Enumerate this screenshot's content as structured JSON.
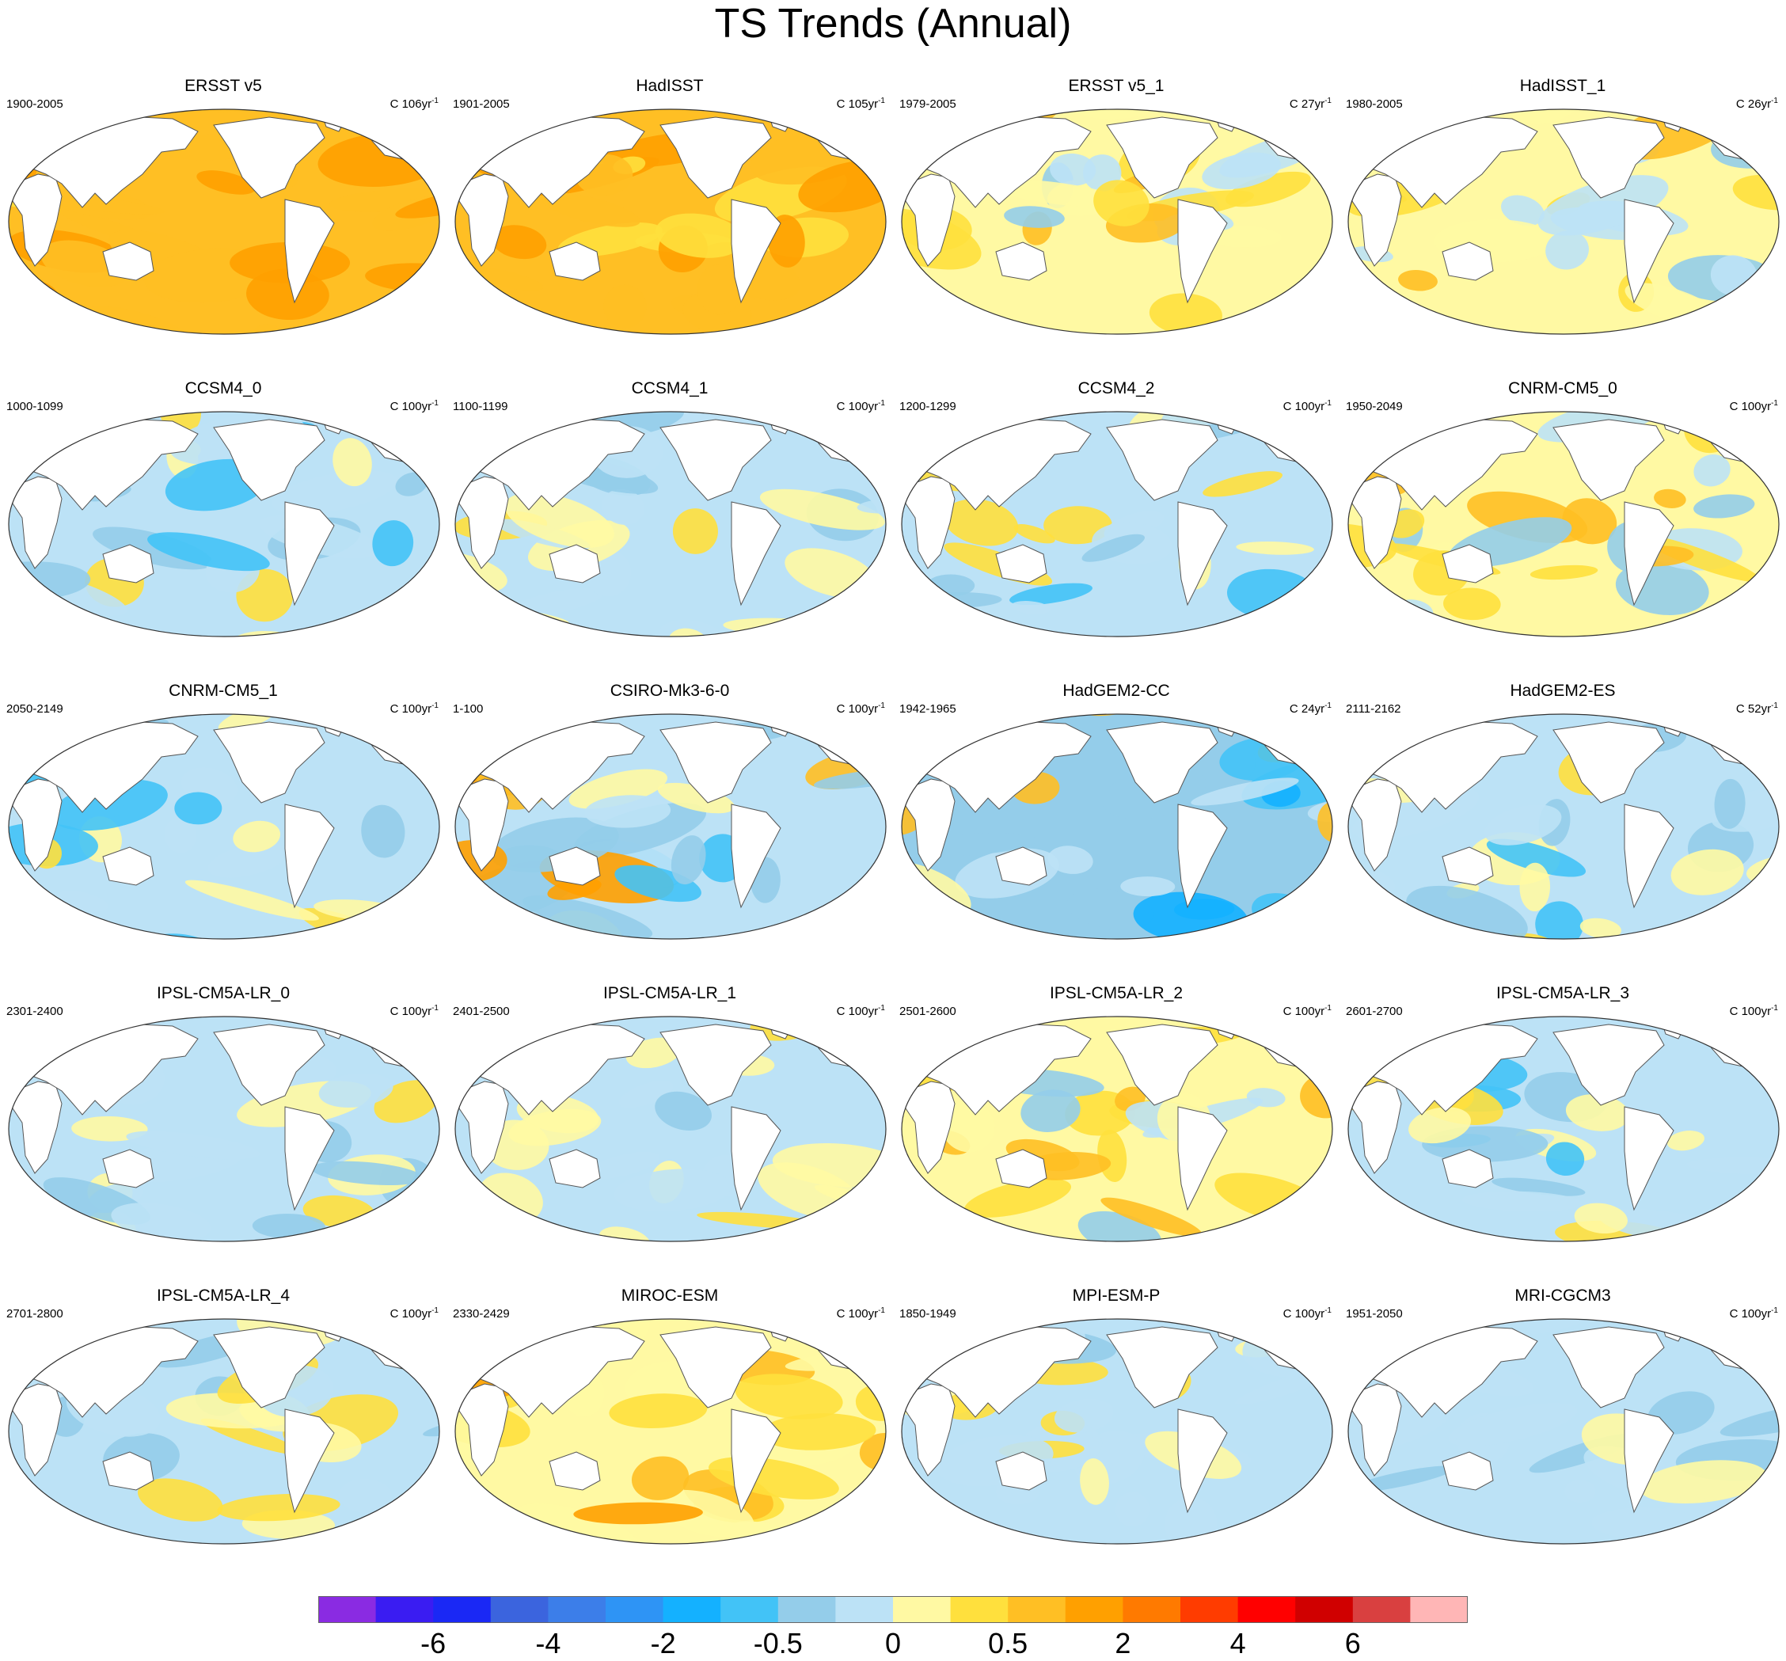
{
  "title": "TS Trends (Annual)",
  "panels": [
    {
      "name": "ERSST v5",
      "period": "1900-2005",
      "units": "C 106yr",
      "pattern": "warm-strong"
    },
    {
      "name": "HadISST",
      "period": "1901-2005",
      "units": "C 105yr",
      "pattern": "warm-strong"
    },
    {
      "name": "ERSST v5_1",
      "period": "1979-2005",
      "units": "C 27yr",
      "pattern": "mixed-warm"
    },
    {
      "name": "HadISST_1",
      "period": "1980-2005",
      "units": "C 26yr",
      "pattern": "mixed-warm"
    },
    {
      "name": "CCSM4_0",
      "period": "1000-1099",
      "units": "C 100yr",
      "pattern": "mixed-cool"
    },
    {
      "name": "CCSM4_1",
      "period": "1100-1199",
      "units": "C 100yr",
      "pattern": "mixed"
    },
    {
      "name": "CCSM4_2",
      "period": "1200-1299",
      "units": "C 100yr",
      "pattern": "mixed-cool"
    },
    {
      "name": "CNRM-CM5_0",
      "period": "1950-2049",
      "units": "C 100yr",
      "pattern": "mixed-warm"
    },
    {
      "name": "CNRM-CM5_1",
      "period": "2050-2149",
      "units": "C 100yr",
      "pattern": "mixed-cool"
    },
    {
      "name": "CSIRO-Mk3-6-0",
      "period": "1-100",
      "units": "C 100yr",
      "pattern": "dipole"
    },
    {
      "name": "HadGEM2-CC",
      "period": "1942-1965",
      "units": "C 24yr",
      "pattern": "cool-strong"
    },
    {
      "name": "HadGEM2-ES",
      "period": "2111-2162",
      "units": "C 52yr",
      "pattern": "mixed-cool"
    },
    {
      "name": "IPSL-CM5A-LR_0",
      "period": "2301-2400",
      "units": "C 100yr",
      "pattern": "mixed"
    },
    {
      "name": "IPSL-CM5A-LR_1",
      "period": "2401-2500",
      "units": "C 100yr",
      "pattern": "mixed"
    },
    {
      "name": "IPSL-CM5A-LR_2",
      "period": "2501-2600",
      "units": "C 100yr",
      "pattern": "mixed-warm"
    },
    {
      "name": "IPSL-CM5A-LR_3",
      "period": "2601-2700",
      "units": "C 100yr",
      "pattern": "mixed-cool"
    },
    {
      "name": "IPSL-CM5A-LR_4",
      "period": "2701-2800",
      "units": "C 100yr",
      "pattern": "mixed"
    },
    {
      "name": "MIROC-ESM",
      "period": "2330-2429",
      "units": "C 100yr",
      "pattern": "warm"
    },
    {
      "name": "MPI-ESM-P",
      "period": "1850-1949",
      "units": "C 100yr",
      "pattern": "mixed"
    },
    {
      "name": "MRI-CGCM3",
      "period": "1951-2050",
      "units": "C 100yr",
      "pattern": "cool"
    }
  ],
  "units_superscript": "-1",
  "colorbar": {
    "colors": [
      "#8a2be2",
      "#3a1cf2",
      "#1a28f5",
      "#3b64de",
      "#3c7ee9",
      "#2e94f5",
      "#14b1ff",
      "#42c3f7",
      "#94cdea",
      "#bce2f6",
      "#fff9a3",
      "#ffe03d",
      "#ffbf24",
      "#ffa000",
      "#ff7a00",
      "#ff3c00",
      "#ff0000",
      "#d00000",
      "#d94040",
      "#ffb6b6"
    ],
    "labels": [
      "-6",
      "-4",
      "-2",
      "-0.5",
      "0",
      "0.5",
      "2",
      "4",
      "6"
    ]
  }
}
